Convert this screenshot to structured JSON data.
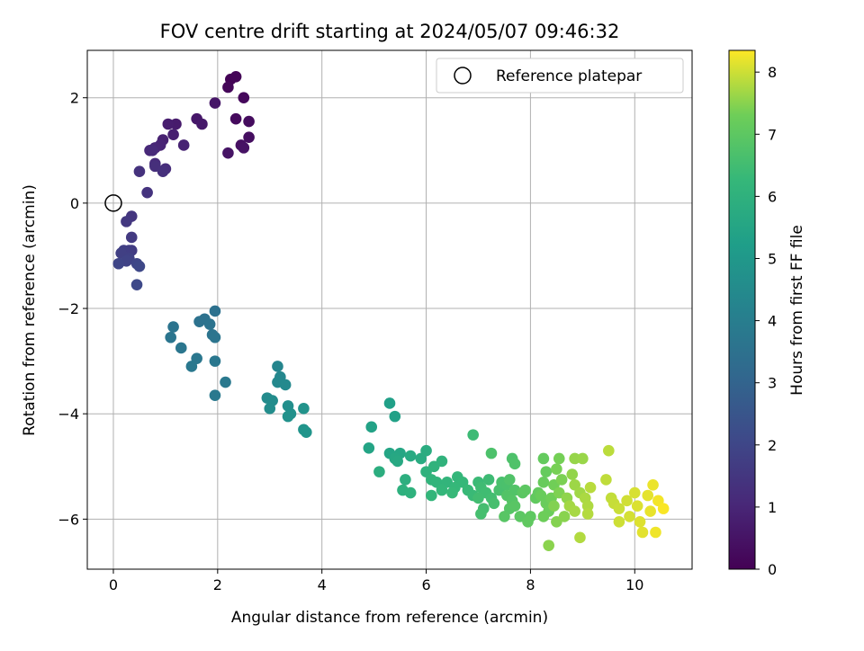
{
  "chart_data": {
    "type": "scatter",
    "title": "FOV centre drift starting at 2024/05/07 09:46:32",
    "xlabel": "Angular distance from reference (arcmin)",
    "ylabel": "Rotation from reference (arcmin)",
    "colorbar_label": "Hours from first FF file",
    "xlim": [
      -0.5,
      11.1
    ],
    "ylim": [
      -6.95,
      2.9
    ],
    "clim": [
      0,
      8.35
    ],
    "x_ticks": [
      0,
      2,
      4,
      6,
      8,
      10
    ],
    "x_tick_labels": [
      "0",
      "2",
      "4",
      "6",
      "8",
      "10"
    ],
    "y_ticks": [
      2,
      0,
      -2,
      -4,
      -6
    ],
    "y_tick_labels": [
      "2",
      "0",
      "−2",
      "−4",
      "−6"
    ],
    "c_ticks": [
      0,
      1,
      2,
      3,
      4,
      5,
      6,
      7,
      8
    ],
    "c_tick_labels": [
      "0",
      "1",
      "2",
      "3",
      "4",
      "5",
      "6",
      "7",
      "8"
    ],
    "grid": true,
    "colormap": "viridis",
    "legend": {
      "placement": "top-right",
      "entries": [
        "Reference platepar"
      ]
    },
    "reference_point": {
      "x": 0,
      "y": 0
    },
    "points": [
      [
        2.25,
        2.35,
        0.05
      ],
      [
        2.35,
        2.4,
        0.1
      ],
      [
        2.2,
        2.2,
        0.15
      ],
      [
        2.5,
        2.0,
        0.2
      ],
      [
        2.35,
        1.6,
        0.25
      ],
      [
        2.6,
        1.55,
        0.3
      ],
      [
        2.6,
        1.25,
        0.35
      ],
      [
        2.45,
        1.1,
        0.4
      ],
      [
        2.5,
        1.05,
        0.45
      ],
      [
        2.2,
        0.95,
        0.5
      ],
      [
        1.95,
        1.9,
        0.55
      ],
      [
        1.6,
        1.6,
        0.6
      ],
      [
        1.7,
        1.5,
        0.65
      ],
      [
        1.2,
        1.5,
        0.7
      ],
      [
        1.05,
        1.5,
        0.75
      ],
      [
        1.15,
        1.3,
        0.8
      ],
      [
        0.95,
        1.2,
        0.85
      ],
      [
        1.35,
        1.1,
        0.9
      ],
      [
        0.9,
        1.1,
        0.95
      ],
      [
        0.8,
        1.05,
        1.0
      ],
      [
        0.7,
        1.0,
        1.05
      ],
      [
        0.75,
        1.0,
        1.1
      ],
      [
        0.8,
        0.75,
        1.15
      ],
      [
        1.0,
        0.65,
        1.2
      ],
      [
        0.8,
        0.7,
        1.25
      ],
      [
        0.95,
        0.6,
        1.3
      ],
      [
        0.5,
        0.6,
        1.35
      ],
      [
        0.65,
        0.2,
        1.4
      ],
      [
        0.35,
        -0.25,
        1.5
      ],
      [
        0.25,
        -0.35,
        1.55
      ],
      [
        0.35,
        -0.65,
        1.6
      ],
      [
        0.35,
        -0.9,
        1.65
      ],
      [
        0.3,
        -0.9,
        1.7
      ],
      [
        0.2,
        -0.9,
        1.75
      ],
      [
        0.15,
        -0.95,
        1.8
      ],
      [
        0.3,
        -1.05,
        1.85
      ],
      [
        0.25,
        -1.1,
        1.9
      ],
      [
        0.1,
        -1.15,
        1.95
      ],
      [
        0.45,
        -1.15,
        2.0
      ],
      [
        0.5,
        -1.2,
        2.05
      ],
      [
        0.45,
        -1.55,
        2.1
      ],
      [
        1.95,
        -2.05,
        3.5
      ],
      [
        1.75,
        -2.2,
        3.52
      ],
      [
        1.65,
        -2.25,
        3.55
      ],
      [
        1.85,
        -2.3,
        3.58
      ],
      [
        1.15,
        -2.35,
        3.6
      ],
      [
        1.9,
        -2.5,
        3.62
      ],
      [
        1.95,
        -2.55,
        3.65
      ],
      [
        1.1,
        -2.55,
        3.67
      ],
      [
        1.3,
        -2.75,
        3.7
      ],
      [
        1.6,
        -2.95,
        3.72
      ],
      [
        1.95,
        -3.0,
        3.75
      ],
      [
        1.5,
        -3.1,
        3.78
      ],
      [
        2.15,
        -3.4,
        3.8
      ],
      [
        1.95,
        -3.65,
        3.83
      ],
      [
        3.15,
        -3.1,
        4.3
      ],
      [
        3.2,
        -3.3,
        4.35
      ],
      [
        3.15,
        -3.4,
        4.4
      ],
      [
        3.3,
        -3.45,
        4.45
      ],
      [
        2.95,
        -3.7,
        4.5
      ],
      [
        3.05,
        -3.75,
        4.55
      ],
      [
        3.0,
        -3.9,
        4.6
      ],
      [
        3.35,
        -3.85,
        4.65
      ],
      [
        3.4,
        -4.0,
        4.7
      ],
      [
        3.35,
        -4.05,
        4.75
      ],
      [
        3.65,
        -3.9,
        4.8
      ],
      [
        3.65,
        -4.3,
        4.85
      ],
      [
        3.7,
        -4.35,
        4.9
      ],
      [
        5.3,
        -3.8,
        5.3
      ],
      [
        5.4,
        -4.05,
        5.35
      ],
      [
        4.95,
        -4.25,
        5.4
      ],
      [
        4.9,
        -4.65,
        5.45
      ],
      [
        5.3,
        -4.75,
        5.5
      ],
      [
        5.5,
        -4.75,
        5.55
      ],
      [
        5.4,
        -4.85,
        5.6
      ],
      [
        5.45,
        -4.9,
        5.65
      ],
      [
        5.7,
        -4.8,
        5.7
      ],
      [
        5.9,
        -4.85,
        5.75
      ],
      [
        6.0,
        -4.7,
        5.8
      ],
      [
        5.1,
        -5.1,
        5.85
      ],
      [
        5.6,
        -5.25,
        5.9
      ],
      [
        5.55,
        -5.45,
        5.95
      ],
      [
        5.7,
        -5.5,
        6.0
      ],
      [
        6.0,
        -5.1,
        6.02
      ],
      [
        6.15,
        -5.0,
        6.05
      ],
      [
        6.3,
        -4.9,
        6.07
      ],
      [
        6.1,
        -5.25,
        6.1
      ],
      [
        6.2,
        -5.3,
        6.12
      ],
      [
        6.4,
        -5.3,
        6.15
      ],
      [
        6.1,
        -5.55,
        6.17
      ],
      [
        6.3,
        -5.45,
        6.2
      ],
      [
        6.6,
        -5.2,
        6.22
      ],
      [
        6.7,
        -5.3,
        6.25
      ],
      [
        6.55,
        -5.4,
        6.27
      ],
      [
        6.5,
        -5.5,
        6.3
      ],
      [
        6.8,
        -5.45,
        6.32
      ],
      [
        6.9,
        -5.55,
        6.35
      ],
      [
        7.0,
        -5.3,
        6.37
      ],
      [
        6.9,
        -4.4,
        6.4
      ],
      [
        7.2,
        -5.25,
        6.42
      ],
      [
        7.05,
        -5.4,
        6.45
      ],
      [
        7.15,
        -5.5,
        6.47
      ],
      [
        7.0,
        -5.6,
        6.5
      ],
      [
        7.25,
        -5.6,
        6.52
      ],
      [
        7.1,
        -5.8,
        6.55
      ],
      [
        7.05,
        -5.9,
        6.57
      ],
      [
        7.3,
        -5.7,
        6.6
      ],
      [
        7.4,
        -5.45,
        6.62
      ],
      [
        7.45,
        -5.3,
        6.65
      ],
      [
        7.55,
        -5.35,
        6.67
      ],
      [
        7.25,
        -4.75,
        6.7
      ],
      [
        7.65,
        -4.85,
        6.72
      ],
      [
        7.7,
        -4.95,
        6.75
      ],
      [
        7.6,
        -5.25,
        6.77
      ],
      [
        7.7,
        -5.45,
        6.8
      ],
      [
        7.55,
        -5.55,
        6.82
      ],
      [
        7.65,
        -5.65,
        6.85
      ],
      [
        7.6,
        -5.8,
        6.87
      ],
      [
        7.5,
        -5.95,
        6.9
      ],
      [
        7.7,
        -5.75,
        6.92
      ],
      [
        7.85,
        -5.5,
        6.95
      ],
      [
        7.8,
        -5.95,
        6.97
      ],
      [
        7.9,
        -5.45,
        7.0
      ],
      [
        8.0,
        -5.95,
        7.02
      ],
      [
        7.95,
        -6.05,
        7.05
      ],
      [
        8.1,
        -5.6,
        7.07
      ],
      [
        8.15,
        -5.5,
        7.1
      ],
      [
        8.25,
        -4.85,
        7.12
      ],
      [
        8.3,
        -5.1,
        7.15
      ],
      [
        8.25,
        -5.3,
        7.17
      ],
      [
        8.2,
        -5.55,
        7.2
      ],
      [
        8.3,
        -5.7,
        7.22
      ],
      [
        8.35,
        -5.85,
        7.25
      ],
      [
        8.25,
        -5.95,
        7.27
      ],
      [
        8.4,
        -5.6,
        7.3
      ],
      [
        8.45,
        -5.35,
        7.32
      ],
      [
        8.55,
        -4.85,
        7.35
      ],
      [
        8.5,
        -5.05,
        7.37
      ],
      [
        8.6,
        -5.25,
        7.4
      ],
      [
        8.55,
        -5.5,
        7.42
      ],
      [
        8.45,
        -5.75,
        7.45
      ],
      [
        8.5,
        -6.05,
        7.47
      ],
      [
        8.65,
        -5.95,
        7.5
      ],
      [
        8.35,
        -6.5,
        7.52
      ],
      [
        8.7,
        -5.6,
        7.55
      ],
      [
        8.8,
        -5.15,
        7.57
      ],
      [
        8.85,
        -4.85,
        7.6
      ],
      [
        9.0,
        -4.85,
        7.62
      ],
      [
        8.85,
        -5.35,
        7.65
      ],
      [
        8.95,
        -5.5,
        7.67
      ],
      [
        8.75,
        -5.75,
        7.7
      ],
      [
        8.85,
        -5.85,
        7.72
      ],
      [
        9.05,
        -5.6,
        7.75
      ],
      [
        9.1,
        -5.75,
        7.77
      ],
      [
        8.95,
        -6.35,
        7.8
      ],
      [
        9.1,
        -5.9,
        7.82
      ],
      [
        9.15,
        -5.4,
        7.85
      ],
      [
        9.5,
        -4.7,
        7.87
      ],
      [
        9.45,
        -5.25,
        7.9
      ],
      [
        9.55,
        -5.6,
        7.92
      ],
      [
        9.6,
        -5.7,
        7.95
      ],
      [
        9.7,
        -5.8,
        7.97
      ],
      [
        9.7,
        -6.05,
        8.0
      ],
      [
        9.85,
        -5.65,
        8.02
      ],
      [
        9.9,
        -5.95,
        8.05
      ],
      [
        10.0,
        -5.5,
        8.07
      ],
      [
        10.05,
        -5.75,
        8.1
      ],
      [
        10.1,
        -6.05,
        8.12
      ],
      [
        10.15,
        -6.25,
        8.15
      ],
      [
        10.25,
        -5.55,
        8.17
      ],
      [
        10.3,
        -5.85,
        8.2
      ],
      [
        10.35,
        -5.35,
        8.22
      ],
      [
        10.4,
        -6.25,
        8.25
      ],
      [
        10.45,
        -5.65,
        8.28
      ],
      [
        10.55,
        -5.8,
        8.32
      ]
    ]
  }
}
